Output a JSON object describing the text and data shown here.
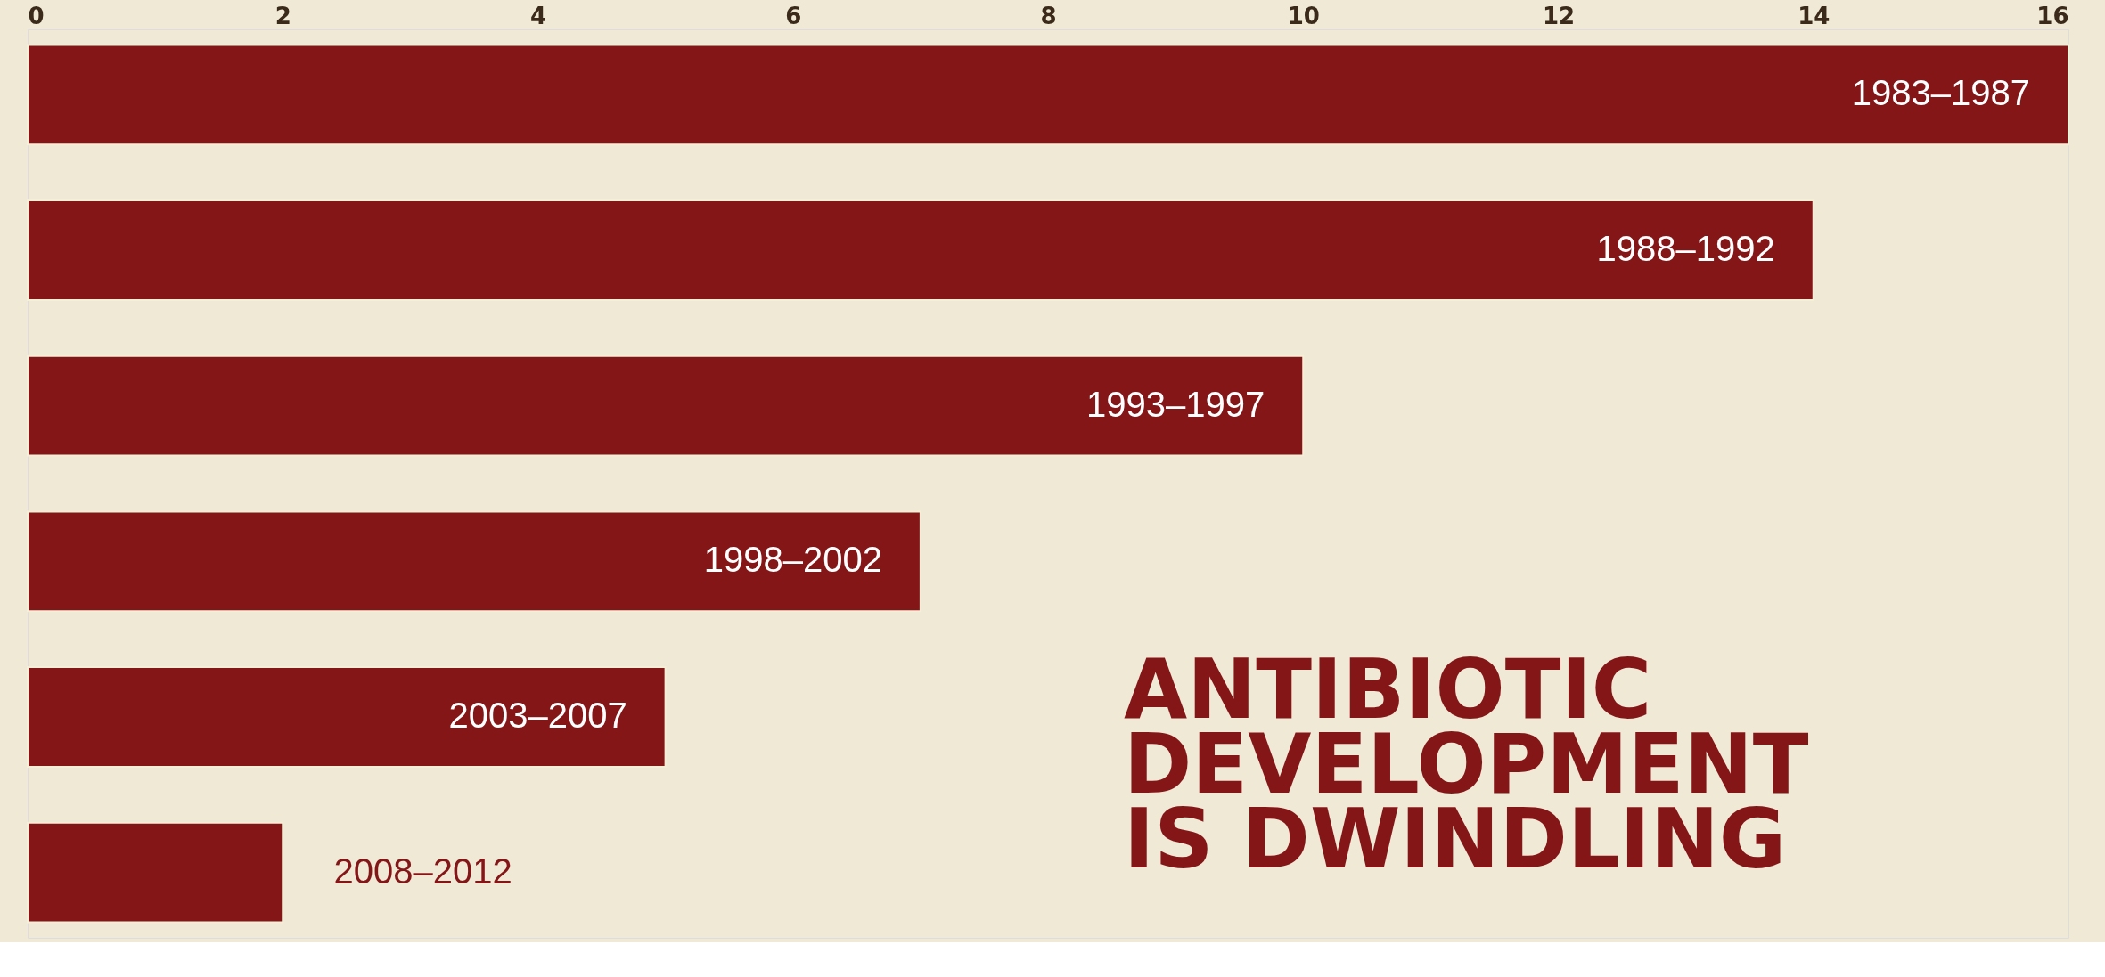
{
  "chart_data": {
    "type": "bar",
    "orientation": "horizontal",
    "title": "ANTIBIOTIC\nDEVELOPMENT\nIS DWINDLING",
    "categories": [
      "1983–1987",
      "1988–1992",
      "1993–1997",
      "1998–2002",
      "2003–2007",
      "2008–2012"
    ],
    "values": [
      16,
      14,
      10,
      7,
      5,
      2
    ],
    "color": "#841618",
    "xlim": [
      0,
      16
    ],
    "xticks": [
      0,
      2,
      4,
      6,
      8,
      10,
      12,
      14,
      16
    ],
    "grid": false,
    "tick_labels": "x"
  }
}
